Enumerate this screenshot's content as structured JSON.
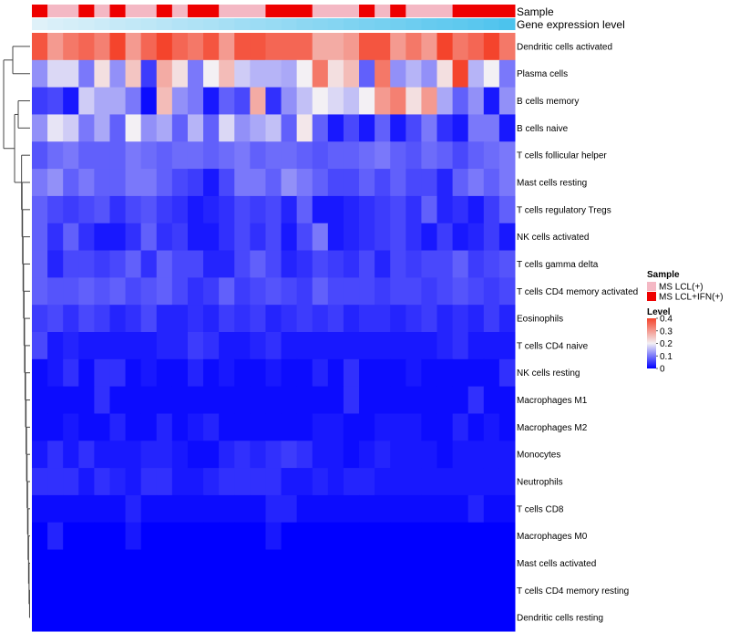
{
  "chart_data": {
    "type": "heatmap",
    "title": "",
    "annotation_tracks": [
      {
        "key": "sample",
        "label": "Sample"
      },
      {
        "key": "expression",
        "label": "Gene expression level"
      }
    ],
    "rows": [
      "Dendritic cells activated",
      "Plasma cells",
      "B cells memory",
      "B cells naive",
      "T cells follicular helper",
      "Mast cells resting",
      "T cells regulatory  Tregs",
      "NK cells activated",
      "T cells gamma delta",
      "T cells CD4 memory activated",
      "Eosinophils",
      "T cells CD4 naive",
      "NK cells resting",
      "Macrophages M1",
      "Macrophages M2",
      "Monocytes",
      "Neutrophils",
      "T cells CD8",
      "Macrophages M0",
      "Mast cells activated",
      "T cells CD4 memory resting",
      "Dendritic cells resting"
    ],
    "column_count": 31,
    "sample_annotation": [
      "IFN",
      "LCL",
      "LCL",
      "IFN",
      "LCL",
      "IFN",
      "LCL",
      "LCL",
      "IFN",
      "LCL",
      "IFN",
      "IFN",
      "LCL",
      "LCL",
      "LCL",
      "IFN",
      "IFN",
      "IFN",
      "LCL",
      "LCL",
      "LCL",
      "IFN",
      "LCL",
      "IFN",
      "LCL",
      "LCL",
      "LCL",
      "IFN",
      "IFN",
      "IFN",
      "IFN"
    ],
    "expression_annotation": [
      0.05,
      0.08,
      0.1,
      0.12,
      0.15,
      0.18,
      0.2,
      0.22,
      0.25,
      0.28,
      0.3,
      0.32,
      0.35,
      0.38,
      0.4,
      0.42,
      0.45,
      0.48,
      0.5,
      0.52,
      0.55,
      0.58,
      0.6,
      0.62,
      0.65,
      0.68,
      0.7,
      0.72,
      0.75,
      0.78,
      0.82
    ],
    "values": [
      [
        0.38,
        0.3,
        0.34,
        0.36,
        0.33,
        0.4,
        0.3,
        0.36,
        0.4,
        0.36,
        0.34,
        0.38,
        0.3,
        0.38,
        0.38,
        0.36,
        0.36,
        0.36,
        0.28,
        0.28,
        0.3,
        0.38,
        0.38,
        0.3,
        0.34,
        0.3,
        0.4,
        0.34,
        0.36,
        0.4,
        0.34
      ],
      [
        0.12,
        0.18,
        0.18,
        0.1,
        0.22,
        0.12,
        0.25,
        0.05,
        0.28,
        0.22,
        0.1,
        0.2,
        0.26,
        0.17,
        0.15,
        0.15,
        0.14,
        0.2,
        0.34,
        0.22,
        0.26,
        0.08,
        0.34,
        0.12,
        0.15,
        0.12,
        0.22,
        0.4,
        0.15,
        0.2,
        0.1
      ],
      [
        0.05,
        0.06,
        0.02,
        0.17,
        0.14,
        0.14,
        0.1,
        0.01,
        0.26,
        0.12,
        0.1,
        0.02,
        0.08,
        0.06,
        0.28,
        0.04,
        0.12,
        0.16,
        0.2,
        0.18,
        0.16,
        0.2,
        0.3,
        0.33,
        0.22,
        0.3,
        0.14,
        0.08,
        0.12,
        0.02,
        0.12
      ],
      [
        0.12,
        0.19,
        0.17,
        0.1,
        0.14,
        0.08,
        0.2,
        0.12,
        0.14,
        0.08,
        0.15,
        0.08,
        0.18,
        0.12,
        0.14,
        0.16,
        0.08,
        0.21,
        0.08,
        0.02,
        0.06,
        0.02,
        0.08,
        0.02,
        0.06,
        0.1,
        0.04,
        0.02,
        0.1,
        0.1,
        0.02
      ],
      [
        0.07,
        0.09,
        0.1,
        0.08,
        0.08,
        0.08,
        0.1,
        0.09,
        0.08,
        0.09,
        0.09,
        0.08,
        0.09,
        0.1,
        0.08,
        0.09,
        0.09,
        0.08,
        0.07,
        0.08,
        0.08,
        0.09,
        0.1,
        0.08,
        0.07,
        0.09,
        0.08,
        0.06,
        0.08,
        0.09,
        0.1
      ],
      [
        0.1,
        0.12,
        0.08,
        0.1,
        0.08,
        0.08,
        0.1,
        0.1,
        0.08,
        0.06,
        0.05,
        0.02,
        0.06,
        0.1,
        0.1,
        0.08,
        0.12,
        0.1,
        0.08,
        0.06,
        0.06,
        0.08,
        0.06,
        0.08,
        0.06,
        0.06,
        0.03,
        0.08,
        0.1,
        0.08,
        0.1
      ],
      [
        0.08,
        0.06,
        0.05,
        0.06,
        0.07,
        0.04,
        0.06,
        0.07,
        0.05,
        0.04,
        0.02,
        0.03,
        0.04,
        0.06,
        0.05,
        0.06,
        0.03,
        0.08,
        0.02,
        0.02,
        0.03,
        0.04,
        0.05,
        0.06,
        0.04,
        0.08,
        0.03,
        0.04,
        0.02,
        0.05,
        0.08
      ],
      [
        0.08,
        0.04,
        0.08,
        0.04,
        0.02,
        0.02,
        0.04,
        0.08,
        0.04,
        0.05,
        0.02,
        0.02,
        0.04,
        0.06,
        0.04,
        0.06,
        0.02,
        0.06,
        0.1,
        0.02,
        0.03,
        0.04,
        0.05,
        0.06,
        0.04,
        0.02,
        0.05,
        0.02,
        0.03,
        0.05,
        0.02
      ],
      [
        0.08,
        0.03,
        0.06,
        0.06,
        0.05,
        0.06,
        0.08,
        0.04,
        0.08,
        0.06,
        0.06,
        0.03,
        0.03,
        0.06,
        0.08,
        0.06,
        0.03,
        0.04,
        0.06,
        0.05,
        0.04,
        0.06,
        0.03,
        0.06,
        0.05,
        0.06,
        0.06,
        0.08,
        0.05,
        0.06,
        0.07
      ],
      [
        0.08,
        0.07,
        0.07,
        0.08,
        0.07,
        0.08,
        0.06,
        0.07,
        0.08,
        0.06,
        0.04,
        0.05,
        0.08,
        0.05,
        0.06,
        0.07,
        0.06,
        0.05,
        0.08,
        0.06,
        0.06,
        0.06,
        0.05,
        0.06,
        0.06,
        0.05,
        0.06,
        0.07,
        0.06,
        0.05,
        0.06
      ],
      [
        0.05,
        0.06,
        0.04,
        0.06,
        0.05,
        0.03,
        0.04,
        0.06,
        0.03,
        0.03,
        0.04,
        0.03,
        0.05,
        0.04,
        0.05,
        0.03,
        0.04,
        0.05,
        0.04,
        0.05,
        0.03,
        0.04,
        0.04,
        0.03,
        0.04,
        0.05,
        0.03,
        0.04,
        0.03,
        0.05,
        0.03
      ],
      [
        0.06,
        0.02,
        0.03,
        0.02,
        0.02,
        0.02,
        0.02,
        0.02,
        0.03,
        0.03,
        0.05,
        0.04,
        0.02,
        0.02,
        0.03,
        0.04,
        0.02,
        0.02,
        0.02,
        0.02,
        0.02,
        0.02,
        0.02,
        0.02,
        0.02,
        0.02,
        0.03,
        0.04,
        0.02,
        0.02,
        0.02
      ],
      [
        0.01,
        0.02,
        0.04,
        0.01,
        0.04,
        0.04,
        0.01,
        0.02,
        0.01,
        0.01,
        0.03,
        0.01,
        0.02,
        0.01,
        0.01,
        0.02,
        0.01,
        0.01,
        0.03,
        0.01,
        0.04,
        0.01,
        0.01,
        0.01,
        0.02,
        0.01,
        0.01,
        0.01,
        0.01,
        0.01,
        0.04
      ],
      [
        0.01,
        0.01,
        0.01,
        0.01,
        0.04,
        0.01,
        0.01,
        0.01,
        0.01,
        0.01,
        0.01,
        0.01,
        0.01,
        0.01,
        0.01,
        0.01,
        0.01,
        0.01,
        0.01,
        0.01,
        0.04,
        0.01,
        0.01,
        0.01,
        0.01,
        0.01,
        0.01,
        0.01,
        0.04,
        0.01,
        0.01
      ],
      [
        0.01,
        0.01,
        0.02,
        0.01,
        0.01,
        0.03,
        0.01,
        0.01,
        0.03,
        0.01,
        0.02,
        0.03,
        0.01,
        0.01,
        0.01,
        0.01,
        0.01,
        0.01,
        0.02,
        0.02,
        0.01,
        0.01,
        0.02,
        0.02,
        0.02,
        0.01,
        0.01,
        0.03,
        0.01,
        0.02,
        0.01
      ],
      [
        0.02,
        0.04,
        0.02,
        0.04,
        0.02,
        0.02,
        0.02,
        0.03,
        0.03,
        0.02,
        0.01,
        0.01,
        0.03,
        0.04,
        0.03,
        0.04,
        0.05,
        0.04,
        0.02,
        0.02,
        0.01,
        0.02,
        0.03,
        0.02,
        0.02,
        0.02,
        0.01,
        0.02,
        0.02,
        0.02,
        0.02
      ],
      [
        0.04,
        0.04,
        0.04,
        0.02,
        0.04,
        0.03,
        0.02,
        0.04,
        0.04,
        0.02,
        0.02,
        0.03,
        0.04,
        0.04,
        0.04,
        0.04,
        0.02,
        0.02,
        0.03,
        0.02,
        0.03,
        0.03,
        0.02,
        0.02,
        0.02,
        0.02,
        0.02,
        0.02,
        0.02,
        0.02,
        0.02
      ],
      [
        0.01,
        0.01,
        0.01,
        0.01,
        0.01,
        0.01,
        0.03,
        0.01,
        0.01,
        0.01,
        0.01,
        0.01,
        0.01,
        0.01,
        0.01,
        0.03,
        0.03,
        0.01,
        0.01,
        0.01,
        0.01,
        0.01,
        0.01,
        0.01,
        0.01,
        0.01,
        0.01,
        0.01,
        0.03,
        0.01,
        0.01
      ],
      [
        0.0,
        0.03,
        0.0,
        0.0,
        0.0,
        0.0,
        0.02,
        0.0,
        0.0,
        0.0,
        0.0,
        0.0,
        0.0,
        0.0,
        0.0,
        0.02,
        0.0,
        0.0,
        0.0,
        0.0,
        0.0,
        0.0,
        0.0,
        0.0,
        0.0,
        0.0,
        0.0,
        0.0,
        0.0,
        0.0,
        0.0
      ],
      [
        0.0,
        0.0,
        0.0,
        0.0,
        0.0,
        0.0,
        0.0,
        0.0,
        0.0,
        0.0,
        0.0,
        0.0,
        0.0,
        0.0,
        0.0,
        0.0,
        0.0,
        0.0,
        0.0,
        0.0,
        0.0,
        0.0,
        0.0,
        0.0,
        0.0,
        0.0,
        0.0,
        0.0,
        0.0,
        0.0,
        0.0
      ],
      [
        0.0,
        0.0,
        0.0,
        0.0,
        0.0,
        0.0,
        0.0,
        0.0,
        0.0,
        0.0,
        0.0,
        0.0,
        0.0,
        0.0,
        0.0,
        0.0,
        0.0,
        0.0,
        0.0,
        0.0,
        0.0,
        0.0,
        0.0,
        0.0,
        0.0,
        0.0,
        0.0,
        0.0,
        0.0,
        0.0,
        0.0
      ],
      [
        0.0,
        0.0,
        0.0,
        0.0,
        0.0,
        0.0,
        0.0,
        0.0,
        0.0,
        0.0,
        0.0,
        0.0,
        0.0,
        0.0,
        0.0,
        0.0,
        0.0,
        0.0,
        0.0,
        0.0,
        0.0,
        0.0,
        0.0,
        0.0,
        0.0,
        0.0,
        0.0,
        0.0,
        0.0,
        0.0,
        0.0
      ]
    ],
    "legend": {
      "sample_title": "Sample",
      "sample_entries": [
        {
          "key": "LCL",
          "label": "MS LCL(+)",
          "color": "#f4b8c4"
        },
        {
          "key": "IFN",
          "label": "MS LCL+IFN(+)",
          "color": "#ee0000"
        }
      ],
      "level_title": "Level",
      "level_ticks": [
        "0.4",
        "0.3",
        "0.2",
        "0.1",
        "0"
      ],
      "level_tick_values": [
        0.4,
        0.3,
        0.2,
        0.1,
        0
      ]
    },
    "color_scale": {
      "min": 0,
      "mid": 0.2,
      "max": 0.4,
      "low": "#0000ff",
      "mid_color": "#f3f0f4",
      "high": "#f4442c"
    },
    "expression_scale": {
      "low": "#e8f4fa",
      "high": "#2ab8ea"
    }
  }
}
